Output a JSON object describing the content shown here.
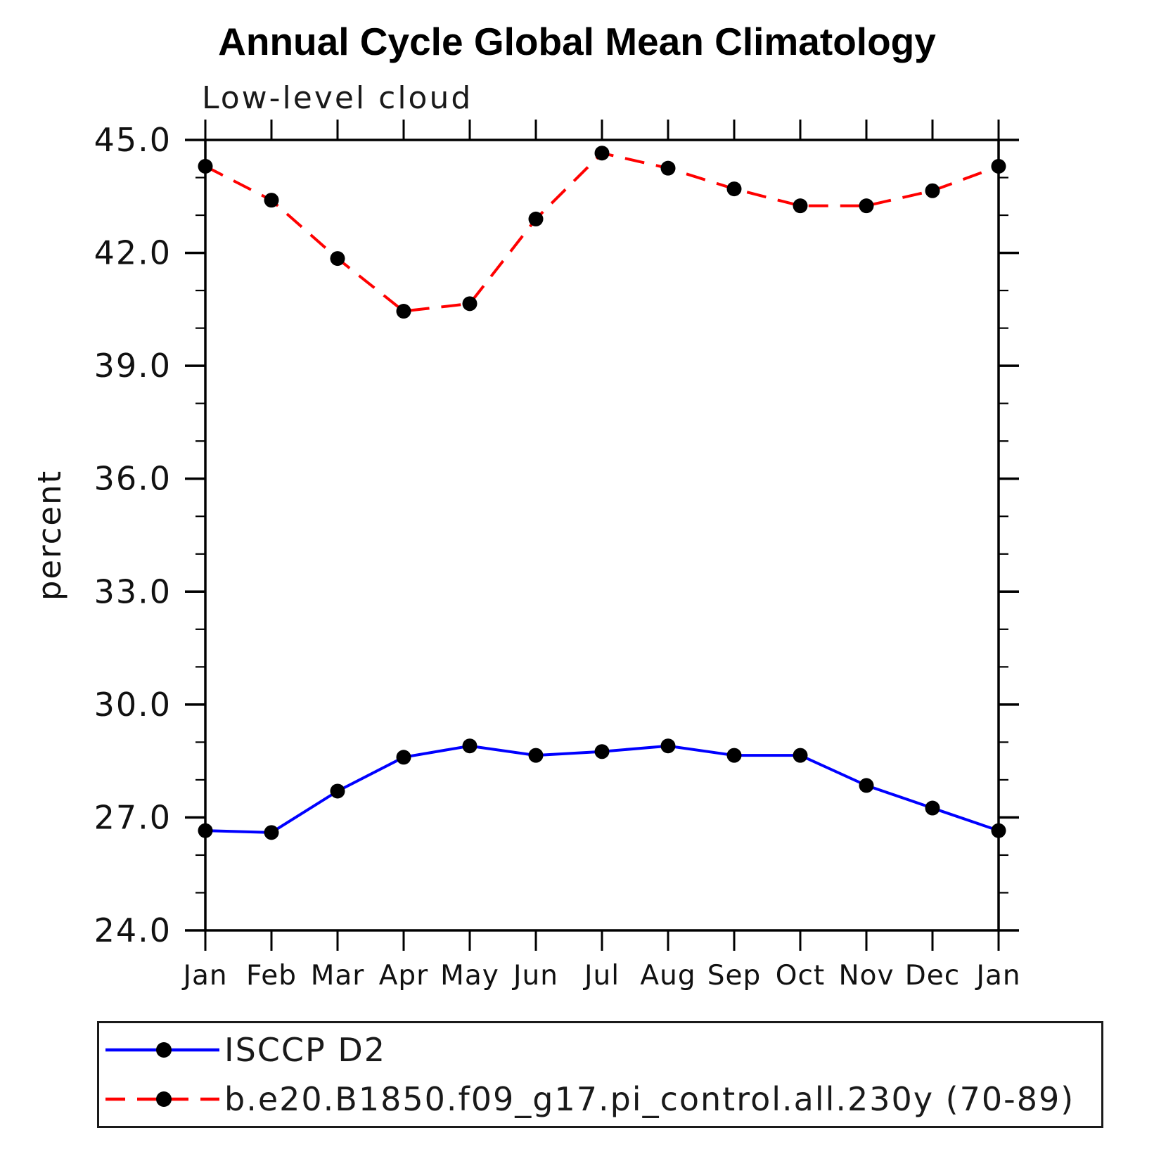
{
  "title": "Annual Cycle Global Mean Climatology",
  "subtitle": "Low-level cloud",
  "ylabel": "percent",
  "chart_data": {
    "type": "line",
    "categories": [
      "Jan",
      "Feb",
      "Mar",
      "Apr",
      "May",
      "Jun",
      "Jul",
      "Aug",
      "Sep",
      "Oct",
      "Nov",
      "Dec",
      "Jan"
    ],
    "series": [
      {
        "name": "ISCCP D2",
        "color": "#0000ff",
        "style": "solid",
        "marker": "black-filled-circle",
        "values": [
          26.65,
          26.6,
          27.7,
          28.6,
          28.9,
          28.65,
          28.75,
          28.9,
          28.65,
          28.65,
          27.85,
          27.25,
          26.65
        ]
      },
      {
        "name": "b.e20.B1850.f09_g17.pi_control.all.230y (70-89)",
        "color": "#ff0000",
        "style": "dashed",
        "marker": "black-filled-circle",
        "values": [
          44.3,
          43.4,
          41.85,
          40.45,
          40.65,
          42.9,
          44.65,
          44.25,
          43.7,
          43.25,
          43.25,
          43.65,
          44.3
        ]
      }
    ],
    "xlabel": "",
    "ylim": [
      24.0,
      45.0
    ],
    "yticks_major": [
      24,
      27,
      30,
      33,
      36,
      39,
      42,
      45
    ],
    "ytick_minor_step": 1,
    "ytick_label_format": "one-decimal",
    "grid": false,
    "legend_position": "bottom",
    "frame": "full-box-outward-ticks"
  }
}
